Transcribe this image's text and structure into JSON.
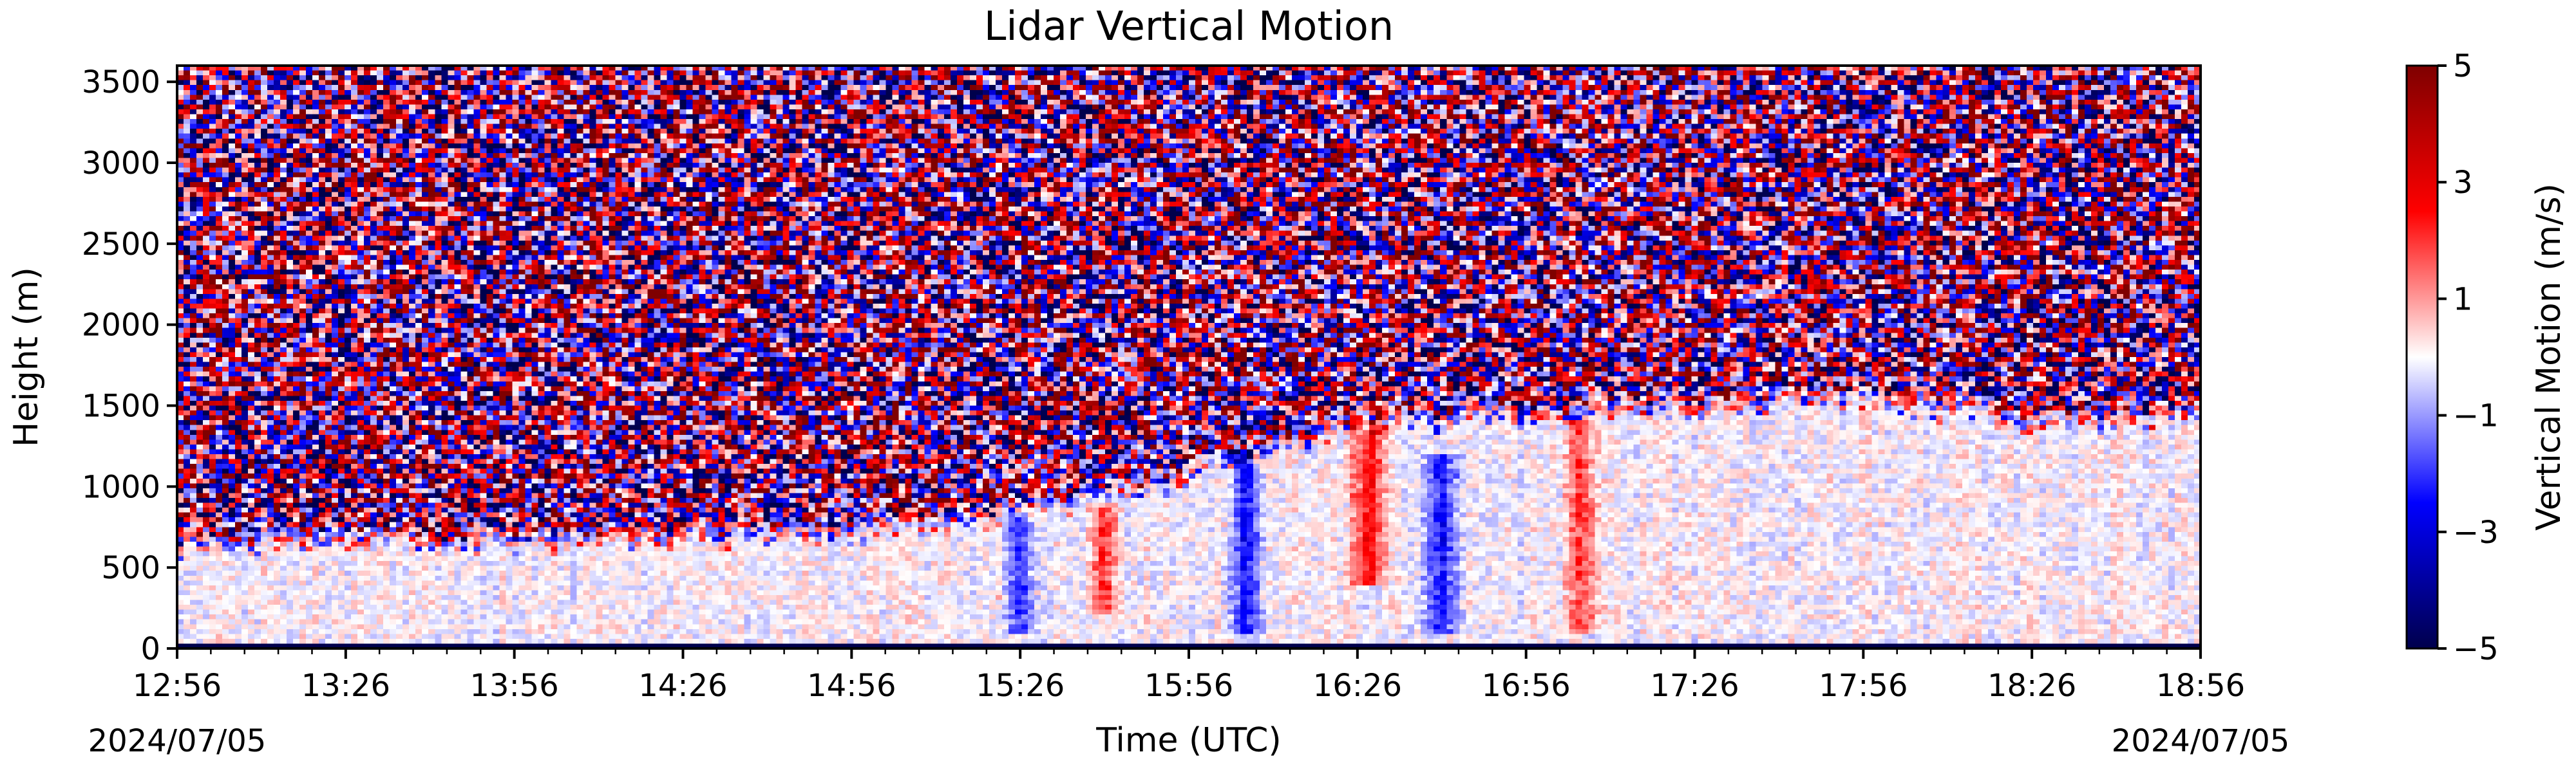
{
  "chart_data": {
    "type": "heatmap",
    "title": "Lidar Vertical Motion",
    "xlabel": "Time (UTC)",
    "ylabel": "Height (m)",
    "x_ticks": [
      "12:56",
      "13:26",
      "13:56",
      "14:26",
      "14:56",
      "15:26",
      "15:56",
      "16:26",
      "16:56",
      "17:26",
      "17:56",
      "18:26",
      "18:56"
    ],
    "x_tick_minutes": [
      0,
      30,
      60,
      90,
      120,
      150,
      180,
      210,
      240,
      270,
      300,
      330,
      360
    ],
    "date_start": "2024/07/05",
    "date_end": "2024/07/05",
    "xlim": [
      "12:56",
      "18:56"
    ],
    "y_ticks": [
      0,
      500,
      1000,
      1500,
      2000,
      2500,
      3000,
      3500
    ],
    "ylim": [
      0,
      3600
    ],
    "colorbar": {
      "label": "Vertical Motion (m/s)",
      "ticks": [
        5,
        3,
        1,
        -1,
        -3,
        -5
      ],
      "tick_labels": [
        "5",
        "3",
        "1",
        "−1",
        "−3",
        "−5"
      ],
      "range": [
        -5,
        5
      ],
      "colormap": "seismic",
      "colors": [
        "#00004c",
        "#0000ff",
        "#ffffff",
        "#ff0000",
        "#7f0000"
      ]
    },
    "boundary_layer_top_m": [
      [
        0,
        700
      ],
      [
        30,
        720
      ],
      [
        60,
        700
      ],
      [
        90,
        740
      ],
      [
        120,
        780
      ],
      [
        150,
        880
      ],
      [
        180,
        1100
      ],
      [
        210,
        1450
      ],
      [
        240,
        1500
      ],
      [
        270,
        1550
      ],
      [
        300,
        1600
      ],
      [
        330,
        1450
      ],
      [
        360,
        1500
      ]
    ],
    "notable_updrafts": [
      {
        "time_min": 212,
        "height_range_m": [
          400,
          1400
        ],
        "velocity_ms": 3
      },
      {
        "time_min": 250,
        "height_range_m": [
          100,
          1400
        ],
        "velocity_ms": 2
      },
      {
        "time_min": 165,
        "height_range_m": [
          200,
          900
        ],
        "velocity_ms": 2
      }
    ],
    "notable_downdrafts": [
      {
        "time_min": 190,
        "height_range_m": [
          100,
          1400
        ],
        "velocity_ms": -2.5
      },
      {
        "time_min": 225,
        "height_range_m": [
          100,
          1200
        ],
        "velocity_ms": -2.5
      },
      {
        "time_min": 150,
        "height_range_m": [
          100,
          800
        ],
        "velocity_ms": -2
      }
    ]
  }
}
